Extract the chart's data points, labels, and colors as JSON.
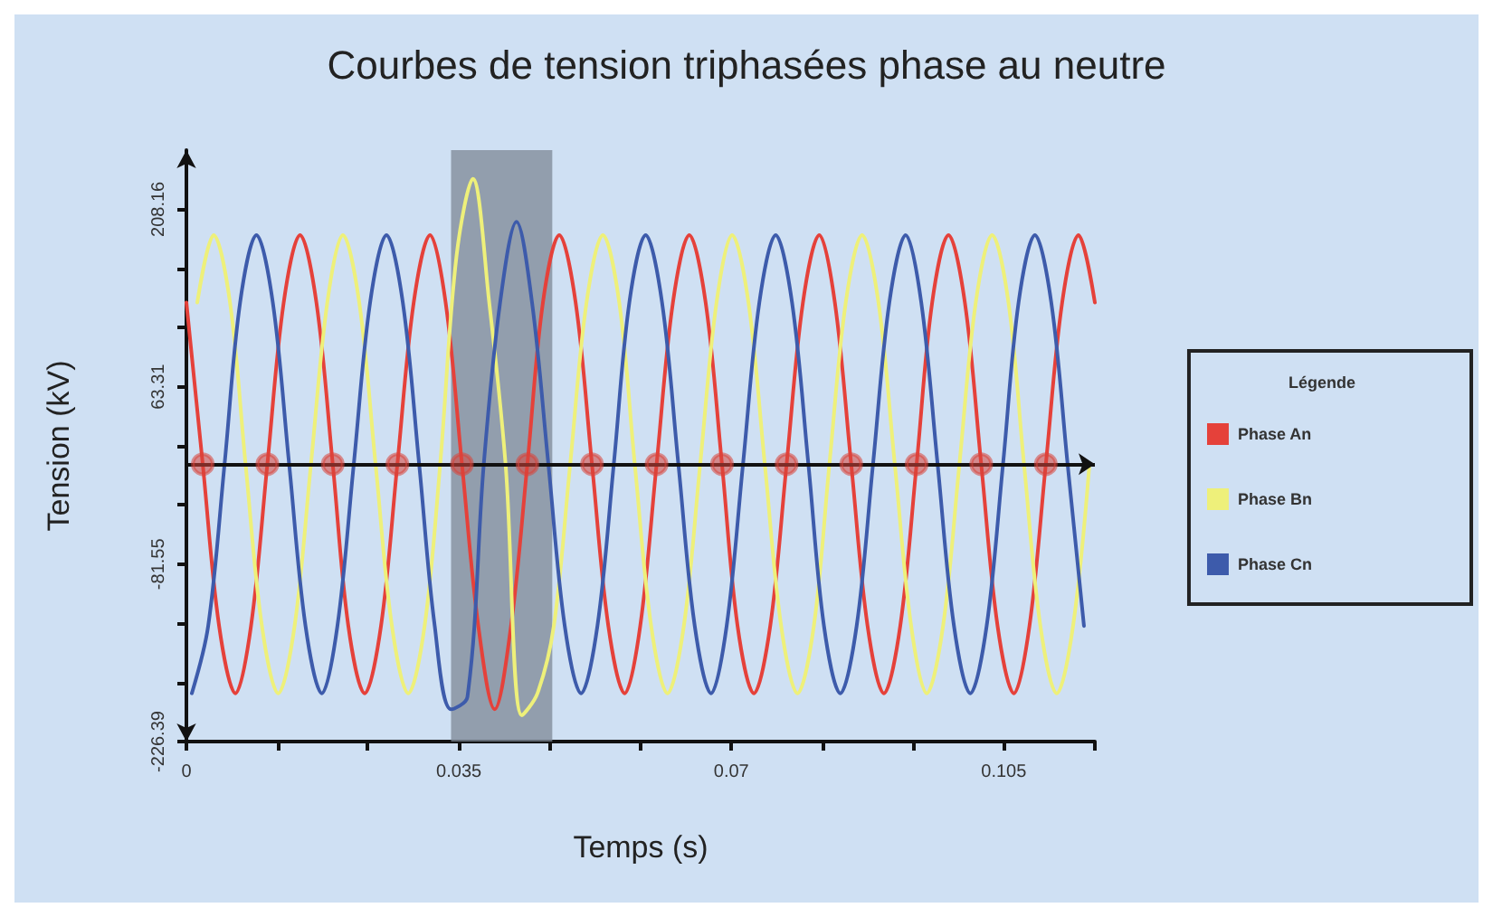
{
  "chart_data": {
    "type": "line",
    "title": "Courbes de tension triphasées phase au neutre",
    "xlabel": "Temps (s)",
    "ylabel": "Tension (kV)",
    "legend_title": "Légende",
    "legend": "right",
    "grid": false,
    "line_style": "solid",
    "xlim": [
      0,
      0.1167
    ],
    "xticks": [
      0,
      {
        "value": 0.0117,
        "label": null
      },
      {
        "value": 0.0233,
        "label": null
      },
      0.035,
      {
        "value": 0.0467,
        "label": null
      },
      {
        "value": 0.0583,
        "label": null
      },
      0.07,
      {
        "value": 0.0817,
        "label": null
      },
      {
        "value": 0.0933,
        "label": null
      },
      0.105,
      {
        "value": 0.1167,
        "label": null
      }
    ],
    "ylim": [
      -226.39,
      256.44
    ],
    "yticks": [
      -226.39,
      {
        "value": -178.11,
        "label": null
      },
      {
        "value": -129.83,
        "label": null
      },
      -81.55,
      {
        "value": -33.27,
        "label": null
      },
      {
        "value": 15.01,
        "label": null
      },
      63.31,
      {
        "value": 111.59,
        "label": null
      },
      {
        "value": 159.87,
        "label": null
      },
      208.16
    ],
    "bands": [
      {
        "axis": "x",
        "from": 0.034,
        "to": 0.047,
        "color": "#7d8895"
      }
    ],
    "ref_lines": [
      {
        "axis": "y",
        "value": 0,
        "color": "#111111"
      }
    ],
    "series": [
      {
        "name": "Phase An",
        "color": "#e5413a",
        "x": [
          0,
          0.0021,
          0.0042,
          0.0063,
          0.0083,
          0.0104,
          0.0125,
          0.0146,
          0.0167,
          0.0188,
          0.0208,
          0.0229,
          0.025,
          0.0271,
          0.0292,
          0.0313,
          0.0333,
          0.0354,
          0.0375,
          0.0396,
          0.0417,
          0.0438,
          0.0458,
          0.0479,
          0.05,
          0.0521,
          0.0542,
          0.0563,
          0.0583,
          0.0604,
          0.0625,
          0.0646,
          0.0667,
          0.0688,
          0.0708,
          0.0729,
          0.075,
          0.0771,
          0.0792,
          0.0813,
          0.0833,
          0.0854,
          0.0875,
          0.0896,
          0.0917,
          0.0938,
          0.0958,
          0.0979,
          0.1,
          0.1021,
          0.1042,
          0.1063,
          0.1083,
          0.1104,
          0.1125,
          0.1146,
          0.1167
        ],
        "values": [
          132,
          0,
          -132,
          -187,
          -132,
          0,
          132,
          187,
          132,
          0,
          -132,
          -187,
          -132,
          0,
          132,
          187,
          132,
          0,
          -132,
          -200,
          -132,
          0,
          132,
          187,
          132,
          0,
          -132,
          -187,
          -132,
          0,
          132,
          187,
          132,
          0,
          -132,
          -187,
          -132,
          0,
          132,
          187,
          132,
          0,
          -132,
          -187,
          -132,
          0,
          132,
          187,
          132,
          0,
          -132,
          -187,
          -132,
          0,
          132,
          187,
          132
        ]
      },
      {
        "name": "Phase Bn",
        "color": "#eef07a",
        "x": [
          0.0014,
          0.0035,
          0.0056,
          0.0076,
          0.0097,
          0.0118,
          0.0139,
          0.016,
          0.0181,
          0.0201,
          0.0222,
          0.0243,
          0.0264,
          0.0285,
          0.0306,
          0.0326,
          0.0347,
          0.0368,
          0.0389,
          0.041,
          0.0431,
          0.0451,
          0.0472,
          0.0493,
          0.0514,
          0.0535,
          0.0556,
          0.0576,
          0.0597,
          0.0618,
          0.0639,
          0.066,
          0.0681,
          0.0701,
          0.0722,
          0.0743,
          0.0764,
          0.0785,
          0.0806,
          0.0826,
          0.0847,
          0.0868,
          0.0889,
          0.091,
          0.0931,
          0.0951,
          0.0972,
          0.0993,
          0.1014,
          0.1035,
          0.1056,
          0.1076,
          0.1097,
          0.1118,
          0.1139,
          0.116
        ],
        "values": [
          132,
          187,
          132,
          0,
          -132,
          -187,
          -132,
          0,
          132,
          187,
          132,
          0,
          -132,
          -187,
          -132,
          0,
          170,
          233,
          132,
          0,
          -205,
          -187,
          -132,
          0,
          132,
          187,
          132,
          0,
          -132,
          -187,
          -132,
          0,
          132,
          187,
          132,
          0,
          -132,
          -187,
          -132,
          0,
          132,
          187,
          132,
          0,
          -132,
          -187,
          -132,
          0,
          132,
          187,
          132,
          0,
          -132,
          -187,
          -132,
          0
        ]
      },
      {
        "name": "Phase Cn",
        "color": "#3d5bab",
        "x": [
          0.0007,
          0.0028,
          0.0049,
          0.0069,
          0.009,
          0.0111,
          0.0132,
          0.0153,
          0.0174,
          0.0194,
          0.0215,
          0.0236,
          0.0257,
          0.0278,
          0.0299,
          0.0319,
          0.034,
          0.0361,
          0.0382,
          0.0403,
          0.0424,
          0.0444,
          0.0465,
          0.0486,
          0.0507,
          0.0528,
          0.0549,
          0.0569,
          0.059,
          0.0611,
          0.0632,
          0.0653,
          0.0674,
          0.0694,
          0.0715,
          0.0736,
          0.0757,
          0.0778,
          0.0799,
          0.0819,
          0.084,
          0.0861,
          0.0882,
          0.0903,
          0.0924,
          0.0944,
          0.0965,
          0.0986,
          0.1007,
          0.1028,
          0.1049,
          0.1069,
          0.109,
          0.1111,
          0.1132,
          0.1153
        ],
        "values": [
          -187,
          -132,
          0,
          132,
          187,
          132,
          0,
          -132,
          -187,
          -132,
          0,
          132,
          187,
          132,
          0,
          -132,
          -200,
          -190,
          0,
          132,
          198,
          132,
          0,
          -132,
          -187,
          -132,
          0,
          132,
          187,
          132,
          0,
          -132,
          -187,
          -132,
          0,
          132,
          187,
          132,
          0,
          -132,
          -187,
          -132,
          0,
          132,
          187,
          132,
          0,
          -132,
          -187,
          -132,
          0,
          132,
          187,
          132,
          0,
          -132
        ]
      },
      {
        "type": "scatter",
        "marker": "circle",
        "color": "#d9443a",
        "x": [
          0.0021,
          0.0104,
          0.0188,
          0.0271,
          0.0354,
          0.0438,
          0.0521,
          0.0604,
          0.0688,
          0.0771,
          0.0854,
          0.0938,
          0.1021,
          0.1104
        ],
        "values": [
          0,
          0,
          0,
          0,
          0,
          0,
          0,
          0,
          0,
          0,
          0,
          0,
          0,
          0
        ]
      }
    ]
  }
}
